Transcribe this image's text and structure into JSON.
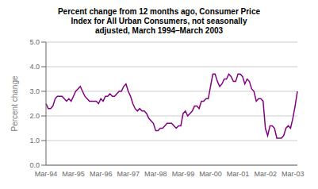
{
  "chart_data": {
    "type": "line",
    "title": "Percent change from 12 months ago, Consumer Price\nIndex for All Urban Consumers, not seasonally\nadjusted, March 1994–March 2003",
    "ylabel": "Percent change",
    "color": "#800080",
    "grid": "y",
    "ylim": [
      0.0,
      5.0
    ],
    "yticks": [
      {
        "value": 0.0,
        "label": "0.0"
      },
      {
        "value": 1.0,
        "label": "1.0"
      },
      {
        "value": 2.0,
        "label": "2.0"
      },
      {
        "value": 3.0,
        "label": "3.0"
      },
      {
        "value": 4.0,
        "label": "4.0"
      },
      {
        "value": 5.0,
        "label": "5.0"
      }
    ],
    "categories": [
      "Mar-94",
      null,
      null,
      null,
      null,
      null,
      null,
      null,
      null,
      null,
      null,
      null,
      "Mar-95",
      null,
      null,
      null,
      null,
      null,
      null,
      null,
      null,
      null,
      null,
      null,
      "Mar-96",
      null,
      null,
      null,
      null,
      null,
      null,
      null,
      null,
      null,
      null,
      null,
      "Mar-97",
      null,
      null,
      null,
      null,
      null,
      null,
      null,
      null,
      null,
      null,
      null,
      "Mar-98",
      null,
      null,
      null,
      null,
      null,
      null,
      null,
      null,
      null,
      null,
      null,
      "Mar-99",
      null,
      null,
      null,
      null,
      null,
      null,
      null,
      null,
      null,
      null,
      null,
      "Mar-00",
      null,
      null,
      null,
      null,
      null,
      null,
      null,
      null,
      null,
      null,
      null,
      "Mar-01",
      null,
      null,
      null,
      null,
      null,
      null,
      null,
      null,
      null,
      null,
      null,
      "Mar-02",
      null,
      null,
      null,
      null,
      null,
      null,
      null,
      null,
      null,
      null,
      null,
      "Mar-03",
      null,
      null
    ],
    "values": [
      2.5,
      2.3,
      2.3,
      2.4,
      2.7,
      2.8,
      2.8,
      2.8,
      2.7,
      2.6,
      2.7,
      2.6,
      2.8,
      3.0,
      3.1,
      3.2,
      3.0,
      2.8,
      2.7,
      2.6,
      2.6,
      2.6,
      2.6,
      2.5,
      2.7,
      2.6,
      2.8,
      2.8,
      2.9,
      2.8,
      2.8,
      2.9,
      3.0,
      3.0,
      3.2,
      3.3,
      3.0,
      2.8,
      2.5,
      2.3,
      2.2,
      2.3,
      2.2,
      2.2,
      2.1,
      1.9,
      1.8,
      1.7,
      1.4,
      1.4,
      1.5,
      1.5,
      1.6,
      1.7,
      1.7,
      1.7,
      1.6,
      1.5,
      1.6,
      1.6,
      2.1,
      2.2,
      2.0,
      2.1,
      2.2,
      2.4,
      2.4,
      2.3,
      2.6,
      2.6,
      2.7,
      2.7,
      3.2,
      3.7,
      3.7,
      3.4,
      3.2,
      3.3,
      3.5,
      3.5,
      3.7,
      3.6,
      3.4,
      3.4,
      3.7,
      3.7,
      3.6,
      3.3,
      3.5,
      3.4,
      3.1,
      3.0,
      2.6,
      2.7,
      2.7,
      2.6,
      1.5,
      1.2,
      1.6,
      1.6,
      1.5,
      1.1,
      1.1,
      1.1,
      1.2,
      1.5,
      1.6,
      1.5,
      1.9,
      2.4,
      3.0
    ]
  }
}
